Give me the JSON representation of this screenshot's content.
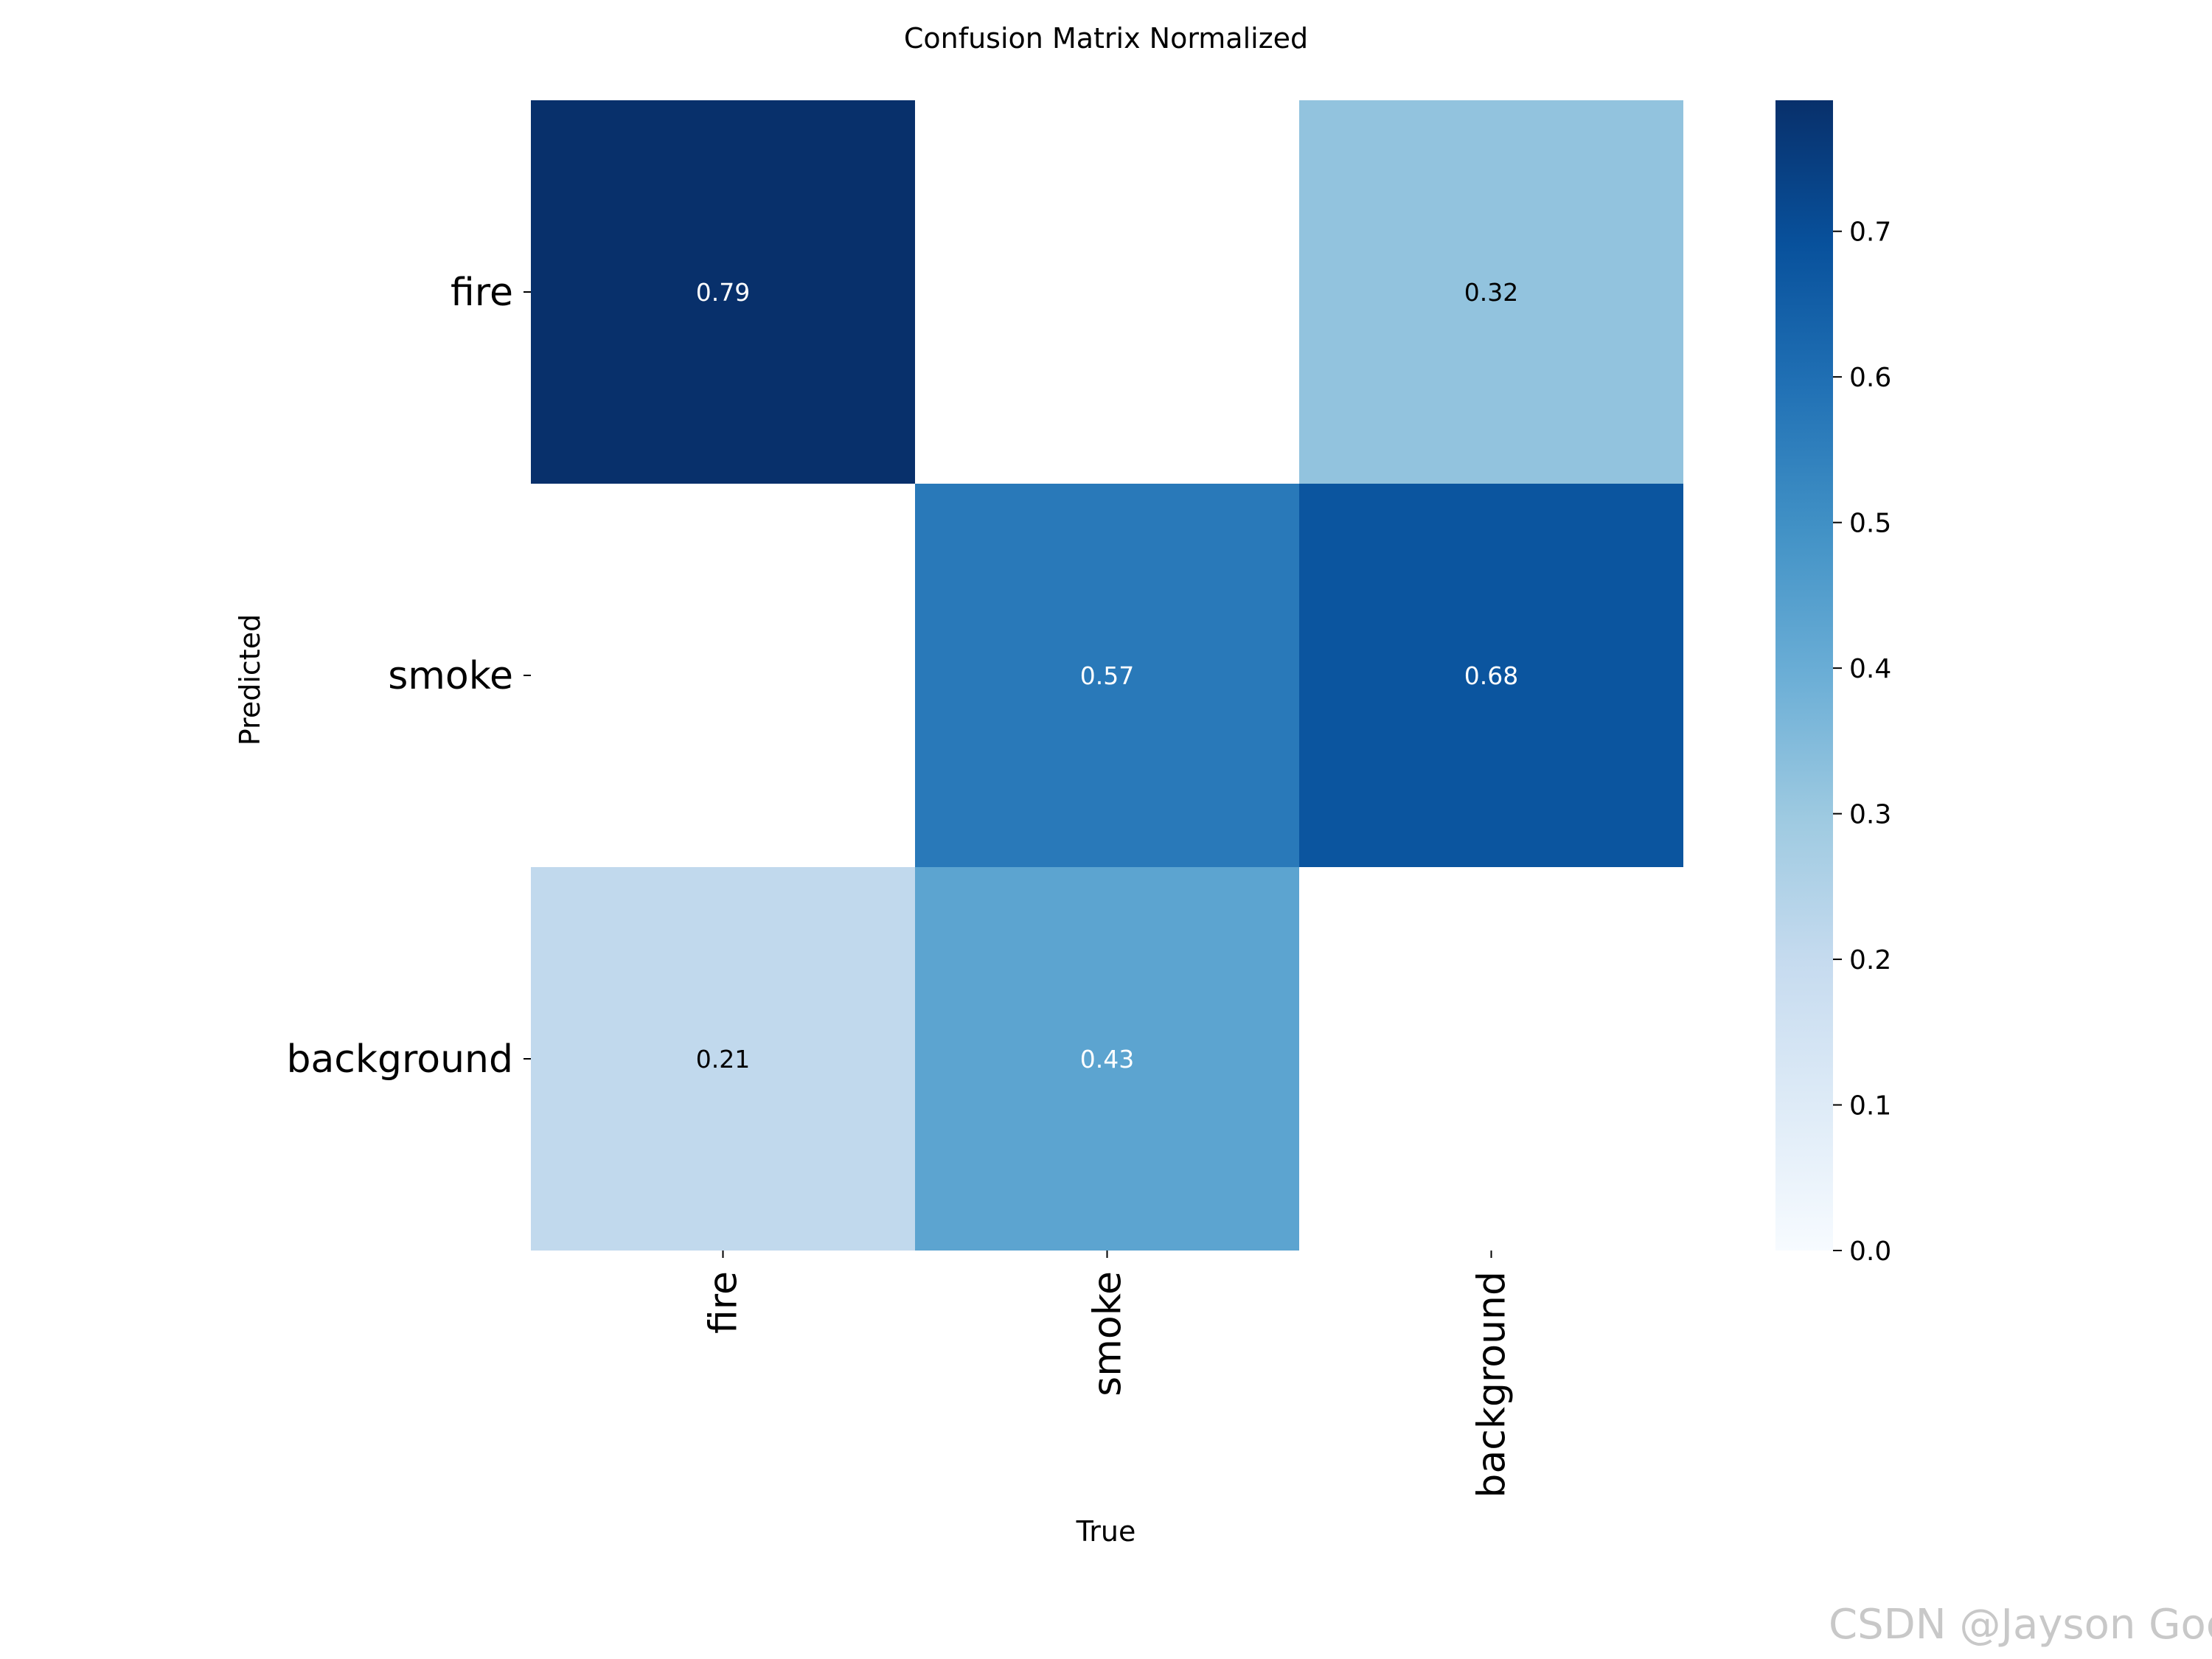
{
  "chart_data": {
    "type": "heatmap",
    "title": "Confusion Matrix Normalized",
    "xlabel": "True",
    "ylabel": "Predicted",
    "x_categories": [
      "fire",
      "smoke",
      "background"
    ],
    "y_categories": [
      "fire",
      "smoke",
      "background"
    ],
    "values": [
      [
        0.79,
        null,
        0.32
      ],
      [
        null,
        0.57,
        0.68
      ],
      [
        0.21,
        0.43,
        null
      ]
    ],
    "cell_labels": [
      [
        "0.79",
        "",
        "0.32"
      ],
      [
        "",
        "0.57",
        "0.68"
      ],
      [
        "0.21",
        "0.43",
        ""
      ]
    ],
    "colormap": "Blues",
    "vmin": 0.0,
    "vmax": 0.79,
    "colorbar": {
      "ticks": [
        0.0,
        0.1,
        0.2,
        0.3,
        0.4,
        0.5,
        0.6,
        0.7
      ],
      "tick_labels": [
        "0.0",
        "0.1",
        "0.2",
        "0.3",
        "0.4",
        "0.5",
        "0.6",
        "0.7"
      ]
    },
    "grid": false,
    "colors": {
      "min": "#f7fbff",
      "max": "#08306b",
      "label_dark": "#000000",
      "label_light": "#ffffff"
    }
  },
  "watermark": "CSDN @Jayson God"
}
